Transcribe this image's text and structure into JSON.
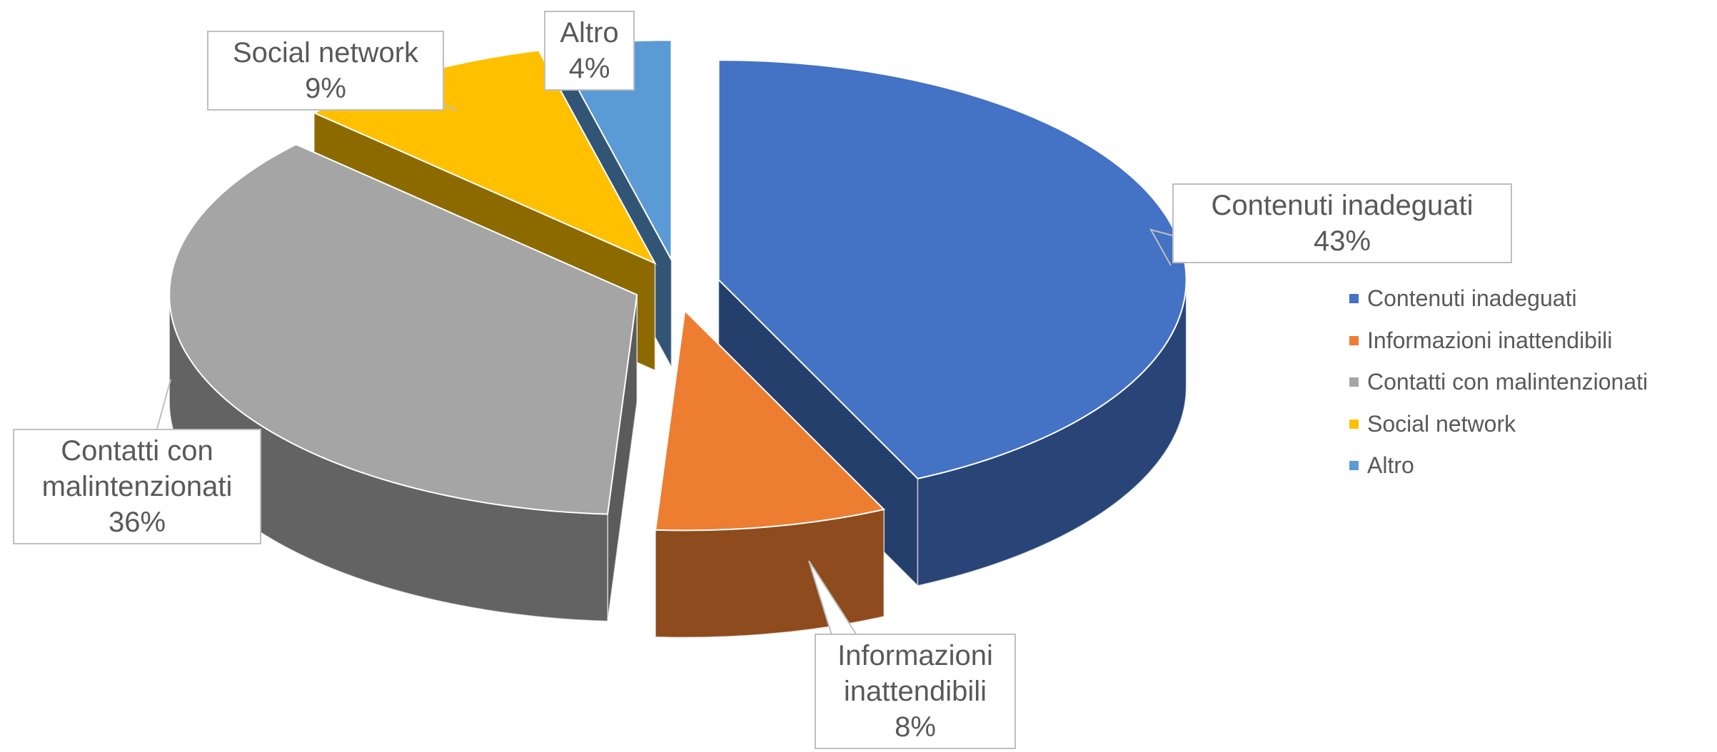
{
  "chart_data": {
    "type": "pie3d",
    "categories": [
      "Contenuti inadeguati",
      "Informazioni inattendibili",
      "Contatti con malintenzionati",
      "Social network",
      "Altro"
    ],
    "values": [
      43,
      8,
      36,
      9,
      4
    ],
    "value_labels": [
      "43%",
      "8%",
      "36%",
      "9%",
      "4%"
    ],
    "colors": [
      "#4472c4",
      "#ed7d31",
      "#a5a5a5",
      "#ffc000",
      "#5b9bd5"
    ],
    "legend": "right"
  }
}
